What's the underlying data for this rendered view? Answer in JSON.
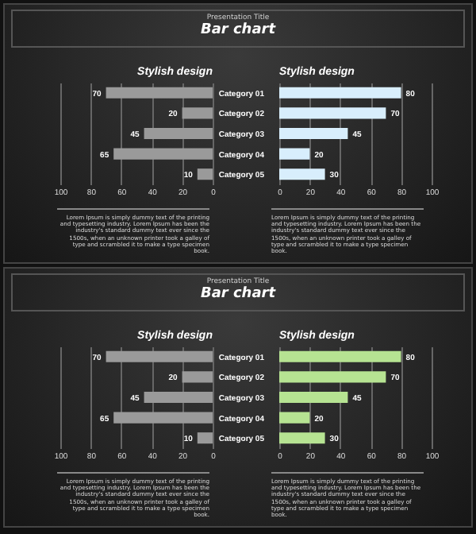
{
  "chart_data": [
    {
      "type": "bar",
      "orientation": "horizontal",
      "title": "Stylish design",
      "categories": [
        null,
        null,
        null,
        null,
        null
      ],
      "series": [
        {
          "color": "#9a9a9a",
          "values": [
            70,
            20,
            45,
            65,
            10
          ]
        }
      ],
      "xlim": [
        100,
        0
      ],
      "xticks": [
        100,
        80,
        60,
        40,
        20,
        0
      ],
      "grid": "x",
      "data_labels": true,
      "tick_labels": "x",
      "annotations": [
        "Presentation Title",
        "Bar chart",
        "Lorem Ipsum is simply dummy text of the printing and typesetting industry. Lorem Ipsum has been the industry's standard dummy text ever since the 1500s, when an unknown printer took a galley of type and scrambled it to make a type specimen book."
      ]
    },
    {
      "type": "bar",
      "orientation": "horizontal",
      "title": "Stylish design",
      "categories": [
        "Category 01",
        "Category 02",
        "Category 03",
        "Category 04",
        "Category 05"
      ],
      "series": [
        {
          "color": "#d8eefc",
          "values": [
            80,
            70,
            45,
            20,
            30
          ]
        }
      ],
      "xlim": [
        0,
        100
      ],
      "xticks": [
        0,
        20,
        40,
        60,
        80,
        100
      ],
      "grid": "x",
      "data_labels": true,
      "annotations": [
        "Lorem Ipsum is simply dummy text of the printing and typesetting industry. Lorem Ipsum has been the industry's standard dummy text ever since the 1500s, when an unknown printer took a galley of type and scrambled it to make a type specimen book."
      ]
    },
    {
      "type": "bar",
      "orientation": "horizontal",
      "title": "Stylish design",
      "categories": [
        null,
        null,
        null,
        null,
        null
      ],
      "series": [
        {
          "color": "#9a9a9a",
          "values": [
            70,
            20,
            45,
            65,
            10
          ]
        }
      ],
      "xlim": [
        100,
        0
      ],
      "xticks": [
        100,
        80,
        60,
        40,
        20,
        0
      ],
      "grid": "x",
      "data_labels": true,
      "tick_labels": "x",
      "annotations": [
        "Presentation Title",
        "Bar chart",
        "Lorem Ipsum is simply dummy text of the printing and typesetting industry. Lorem Ipsum has been the industry's standard dummy text ever since the 1500s, when an unknown printer took a galley of type and scrambled it to make a type specimen book."
      ]
    },
    {
      "type": "bar",
      "orientation": "horizontal",
      "title": "Stylish design",
      "categories": [
        "Category 01",
        "Category 02",
        "Category 03",
        "Category 04",
        "Category 05"
      ],
      "series": [
        {
          "color": "#b6e392",
          "values": [
            80,
            70,
            45,
            20,
            30
          ]
        }
      ],
      "xlim": [
        0,
        100
      ],
      "xticks": [
        0,
        20,
        40,
        60,
        80,
        100
      ],
      "grid": "x",
      "data_labels": true,
      "annotations": [
        "Lorem Ipsum is simply dummy text of the printing and typesetting industry. Lorem Ipsum has been the industry's standard dummy text ever since the 1500s, when an unknown printer took a galley of type and scrambled it to make a type specimen book."
      ]
    }
  ]
}
